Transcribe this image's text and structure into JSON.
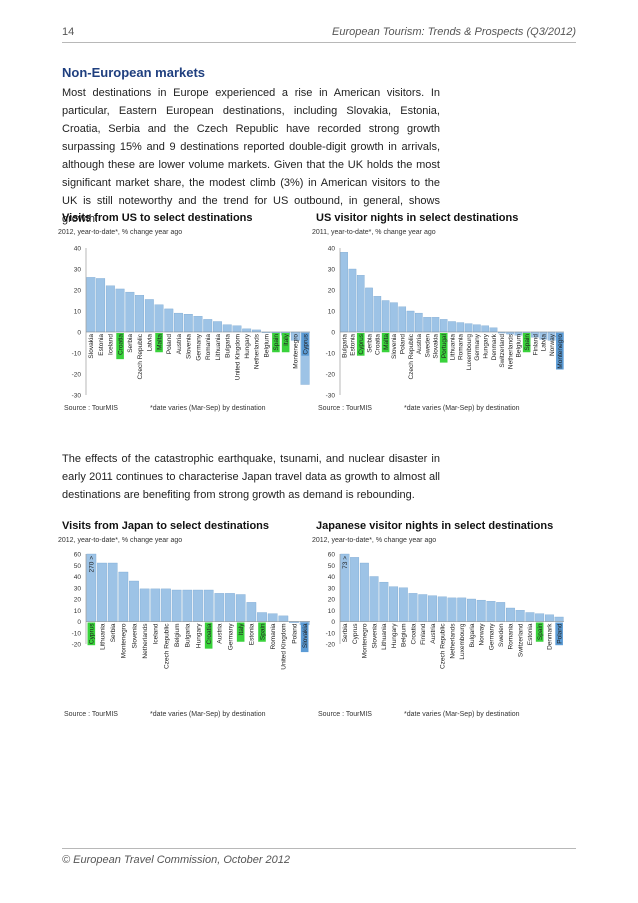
{
  "header": {
    "page_number": "14",
    "doc_title": "European Tourism: Trends & Prospects (Q3/2012)"
  },
  "section_title": "Non-European markets",
  "paragraph1": "Most destinations in Europe experienced a rise in American visitors. In particular, Eastern European destinations, including Slovakia, Estonia, Croatia, Serbia and the Czech Republic have recorded strong growth surpassing 15% and 9 destinations reported double-digit growth in arrivals, although these are lower volume markets. Given that the UK holds the most significant market share, the modest climb (3%) in American visitors to the UK is still noteworthy and the trend for US outbound, in general, shows growth.",
  "paragraph2": "The effects of the catastrophic earthquake, tsunami, and nuclear disaster in early 2011 continues to characterise Japan travel data as growth to almost all destinations are benefiting from strong growth as demand is rebounding.",
  "colors": {
    "bar": "#9dc3e6",
    "bar_stroke": "#6a9cc9",
    "green_highlight": "#39d23b",
    "blue_highlight": "#5b9bd5",
    "heading": "#1f3f7f"
  },
  "footer": "© European Travel Commission, October 2012",
  "chart_data": [
    {
      "type": "bar",
      "title": "Visits from US to select destinations",
      "subtitle": "2012, year-to-date*, % change year ago",
      "source": "Source : TourMIS",
      "note": "*date varies (Mar-Sep) by destination",
      "ylim": [
        -30,
        40
      ],
      "yticks": [
        -30,
        -20,
        -10,
        0,
        10,
        20,
        30,
        40
      ],
      "categories": [
        "Slovakia",
        "Estonia",
        "Iceland",
        "Croatia",
        "Serbia",
        "Czech Republic",
        "Latvia",
        "Malta",
        "Poland",
        "Austria",
        "Slovenia",
        "Germany",
        "Romania",
        "Lithuania",
        "Bulgaria",
        "United Kingdom",
        "Hungary",
        "Netherlands",
        "Belgium",
        "Spain",
        "Italy",
        "Montenegro",
        "Cyprus"
      ],
      "values": [
        26,
        25.5,
        22,
        20.5,
        19,
        17.5,
        15.5,
        13,
        11,
        9,
        8.5,
        7.5,
        6,
        5,
        3.5,
        3,
        1.5,
        1,
        0,
        -0.5,
        -1.5,
        -4,
        -25
      ],
      "highlight_green": [
        "Croatia",
        "Malta",
        "Spain",
        "Italy"
      ],
      "highlight_blue": [
        "Cyprus"
      ],
      "grid": false
    },
    {
      "type": "bar",
      "title": "US visitor nights in select destinations",
      "subtitle": "2011, year-to-date*, % change year ago",
      "source": "Source : TourMIS",
      "note": "*date varies (Mar-Sep) by destination",
      "ylim": [
        -30,
        40
      ],
      "yticks": [
        -30,
        -20,
        -10,
        0,
        10,
        20,
        30,
        40
      ],
      "categories": [
        "Bulgaria",
        "Estonia",
        "Cyprus",
        "Serbia",
        "Croatia",
        "Malta",
        "Slovenia",
        "Poland",
        "Czech Republic",
        "Austria",
        "Sweden",
        "Slovakia",
        "Portugal",
        "Lithuania",
        "Romania",
        "Luxembourg",
        "Germany",
        "Hungary",
        "Denmark",
        "Switzerland",
        "Netherlands",
        "Belgium",
        "Spain",
        "Finland",
        "Latvia",
        "Norway",
        "Montenegro"
      ],
      "values": [
        38,
        30,
        27,
        21,
        17,
        15,
        14,
        12,
        10,
        9,
        7,
        7,
        6,
        5,
        4.5,
        4,
        3.5,
        3,
        2,
        -0.5,
        -1,
        -1.5,
        -2,
        -2.5,
        -3.5,
        -4,
        -5
      ],
      "highlight_green": [
        "Cyprus",
        "Malta",
        "Portugal",
        "Spain"
      ],
      "highlight_blue": [
        "Montenegro"
      ],
      "grid": false
    },
    {
      "type": "bar",
      "title": "Visits from Japan to select destinations",
      "subtitle": "2012, year-to-date*, % change year ago",
      "source": "Source : TourMIS",
      "note": "*date varies (Mar-Sep) by destination",
      "ylim": [
        -20,
        60
      ],
      "yticks": [
        -20,
        -10,
        0,
        10,
        20,
        30,
        40,
        50,
        60
      ],
      "categories": [
        "Cyprus",
        "Lithuania",
        "Serbia",
        "Montenegro",
        "Slovenia",
        "Netherlands",
        "Iceland",
        "Czech Republic",
        "Belgium",
        "Bulgaria",
        "Hungary",
        "Croatia",
        "Austria",
        "Germany",
        "Italy",
        "Estonia",
        "Spain",
        "Romania",
        "United Kingdom",
        "Poland",
        "Slovakia"
      ],
      "values": [
        60,
        52,
        52,
        44,
        36,
        29,
        29,
        29,
        28,
        28,
        28,
        28,
        25,
        25,
        24,
        17,
        8,
        7,
        5,
        -1,
        -3
      ],
      "annotations": [
        {
          "category": "Cyprus",
          "text": "270 >"
        }
      ],
      "highlight_green": [
        "Cyprus",
        "Croatia",
        "Italy",
        "Spain"
      ],
      "highlight_blue": [
        "Slovakia"
      ],
      "grid": false
    },
    {
      "type": "bar",
      "title": "Japanese visitor nights in select destinations",
      "subtitle": "2012, year-to-date*, % change year ago",
      "source": "Source : TourMIS",
      "note": "*date varies (Mar-Sep) by destination",
      "ylim": [
        -20,
        60
      ],
      "yticks": [
        -20,
        -10,
        0,
        10,
        20,
        30,
        40,
        50,
        60
      ],
      "categories": [
        "Serbia",
        "Cyprus",
        "Montenegro",
        "Slovenia",
        "Lithuania",
        "Hungary",
        "Belgium",
        "Croatia",
        "Finland",
        "Austria",
        "Czech Republic",
        "Netherlands",
        "Luxembourg",
        "Bulgaria",
        "Norway",
        "Germany",
        "Sweden",
        "Romania",
        "Switzerland",
        "Estonia",
        "Spain",
        "Denmark",
        "Poland"
      ],
      "values": [
        60,
        57,
        52,
        40,
        35,
        31,
        30,
        25,
        24,
        23,
        22,
        21,
        21,
        20,
        19,
        18,
        17,
        12,
        10,
        8,
        7,
        6,
        4
      ],
      "annotations": [
        {
          "category": "Serbia",
          "text": "73 >"
        }
      ],
      "highlight_green": [
        "Spain"
      ],
      "highlight_blue": [
        "Poland"
      ],
      "grid": false
    }
  ]
}
